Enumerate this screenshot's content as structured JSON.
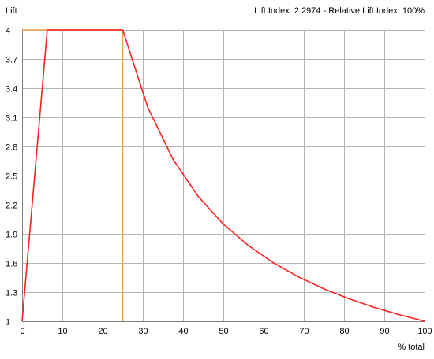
{
  "chart_data": {
    "type": "line",
    "title": "Lift Index: 2.2974 - Relative Lift Index: 100%",
    "ylabel": "Lift",
    "xlabel": "% total",
    "xlim": [
      0,
      100
    ],
    "ylim": [
      1,
      4
    ],
    "xticks": [
      0,
      10,
      20,
      30,
      40,
      50,
      60,
      70,
      80,
      90,
      100
    ],
    "yticks": [
      1,
      1.3,
      1.6,
      1.9,
      2.2,
      2.5,
      2.8,
      3.1,
      3.4,
      3.7,
      4
    ],
    "ytick_labels": [
      "1",
      "1.3",
      "1.6",
      "1.9",
      "2.2",
      "2.5",
      "2.8",
      "3.1",
      "3.4",
      "3.7",
      "4"
    ],
    "grid": true,
    "legend": false,
    "series": [
      {
        "color": "#ff2020",
        "x": [
          0,
          6.25,
          25,
          31.25,
          37.5,
          43.75,
          50,
          56.25,
          62.5,
          68.75,
          75,
          81.25,
          87.5,
          93.75,
          100
        ],
        "y": [
          1,
          4,
          4,
          3.2,
          2.667,
          2.286,
          2,
          1.778,
          1.6,
          1.455,
          1.333,
          1.231,
          1.143,
          1.067,
          1
        ]
      },
      {
        "color": "#e8a23c",
        "x": [
          0,
          25,
          25
        ],
        "y": [
          4,
          4,
          1
        ]
      }
    ],
    "colors": {
      "grid": "#b4b4b4",
      "axis": "#808080"
    }
  }
}
